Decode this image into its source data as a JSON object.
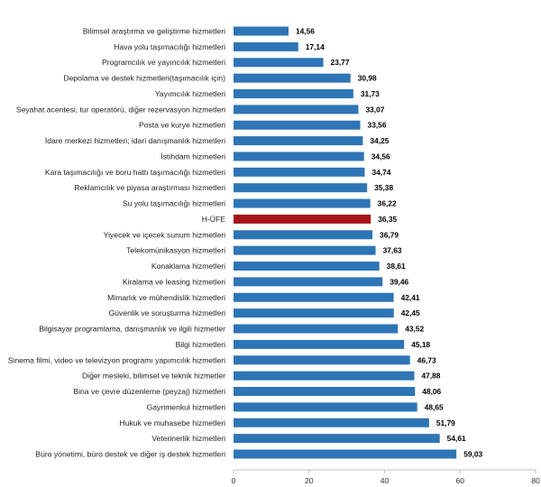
{
  "chart_data": {
    "type": "bar",
    "orientation": "horizontal",
    "categories": [
      "Bilimsel araştırma ve geliştirme hizmetleri",
      "Hava yolu taşımacılığı hizmetleri",
      "Programcılık ve yayıncılık hizmetleri",
      "Depolama ve destek hizmetleri(taşımacılık için)",
      "Yayımcılık hizmetleri",
      "Seyahat acentesi, tur operatörü, diğer rezervasyon hizmetleri",
      "Posta ve kurye hizmetleri",
      "İdare merkezi hizmetleri; idari danışmanlık hizmetleri",
      "İstihdam hizmetleri",
      "Kara taşımacılığı ve boru hattı taşımacılığı hizmetleri",
      "Reklamcılık ve piyasa araştırması hizmetleri",
      "Su yolu taşımacılığı hizmetleri",
      "H-ÜFE",
      "Yiyecek ve içecek sunum hizmetleri",
      "Telekomünikasyon hizmetleri",
      "Konaklama hizmetleri",
      "Kiralama ve leasing hizmetleri",
      "Mimarlık ve mühendislik hizmetleri",
      "Güvenlik ve soruşturma hizmetleri",
      "Bilgisayar programlama, danışmanlık ve ilgili hizmetler",
      "Bilgi hizmetleri",
      "Sinema filmi, video ve televizyon programı yapımcılık hizmetleri",
      "Diğer mesleki, bilimsel ve teknik hizmetler",
      "Bina ve çevre düzenleme (peyzaj) hizmetleri",
      "Gayrimenkul hizmetleri",
      "Hukuk ve muhasebe hizmetleri",
      "Veterinerlik hizmetleri",
      "Büro yönetimi, büro destek ve diğer iş destek hizmetleri"
    ],
    "values": [
      14.56,
      17.14,
      23.77,
      30.98,
      31.73,
      33.07,
      33.56,
      34.25,
      34.56,
      34.74,
      35.38,
      36.22,
      36.35,
      36.79,
      37.63,
      38.61,
      39.46,
      42.41,
      42.45,
      43.52,
      45.18,
      46.73,
      47.88,
      48.06,
      48.65,
      51.79,
      54.61,
      59.03
    ],
    "value_labels": [
      "14,56",
      "17,14",
      "23,77",
      "30,98",
      "31,73",
      "33,07",
      "33,56",
      "34,25",
      "34,56",
      "34,74",
      "35,38",
      "36,22",
      "36,35",
      "36,79",
      "37,63",
      "38,61",
      "39,46",
      "42,41",
      "42,45",
      "43,52",
      "45,18",
      "46,73",
      "47,88",
      "48,06",
      "48,65",
      "51,79",
      "54,61",
      "59,03"
    ],
    "highlight_category": "H-ÜFE",
    "xlim": [
      0,
      80
    ],
    "x_ticks": [
      0,
      20,
      40,
      60,
      80
    ],
    "x_tick_labels": [
      "0",
      "20",
      "40",
      "60",
      "80"
    ],
    "grid": false,
    "colors": {
      "bar": "#2e75b6",
      "highlight": "#a5141c"
    }
  }
}
